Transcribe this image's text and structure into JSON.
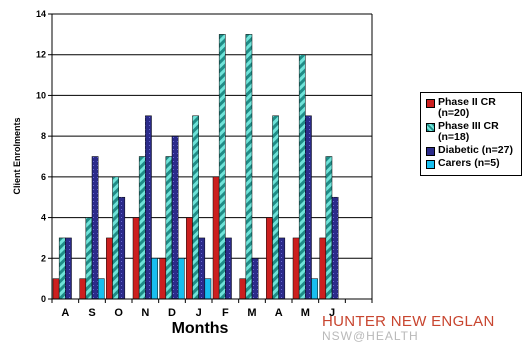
{
  "chart_data": {
    "type": "bar",
    "title": "",
    "xlabel": "Months",
    "ylabel": "Client Enrolments",
    "ylim": [
      0,
      14
    ],
    "yticks": [
      0,
      2,
      4,
      6,
      8,
      10,
      12,
      14
    ],
    "categories": [
      "A",
      "S",
      "O",
      "N",
      "D",
      "J",
      "F",
      "M",
      "A",
      "M",
      "J",
      ""
    ],
    "series": [
      {
        "name": "Phase II CR (n=20)",
        "color": "#cc1f1f",
        "values": [
          1,
          1,
          3,
          4,
          2,
          4,
          6,
          1,
          4,
          3,
          3,
          0
        ]
      },
      {
        "name": "Phase III CR (n=18)",
        "color": "#3dc9c0",
        "pattern": "diagonal-stripe",
        "values": [
          3,
          4,
          6,
          7,
          7,
          9,
          13,
          13,
          9,
          12,
          7,
          0
        ]
      },
      {
        "name": "Diabetic (n=27)",
        "color": "#2b2b8a",
        "pattern": "dotted",
        "values": [
          3,
          7,
          5,
          9,
          8,
          3,
          3,
          2,
          3,
          9,
          5,
          0
        ]
      },
      {
        "name": "Carers (n=5)",
        "color": "#17bff0",
        "values": [
          0,
          1,
          0,
          2,
          2,
          1,
          0,
          0,
          0,
          1,
          0,
          0
        ]
      }
    ],
    "grid": true,
    "legend": "right"
  },
  "logo": {
    "line1": "HUNTER NEW ENGLAN",
    "line2": "NSW@HEALTH"
  }
}
